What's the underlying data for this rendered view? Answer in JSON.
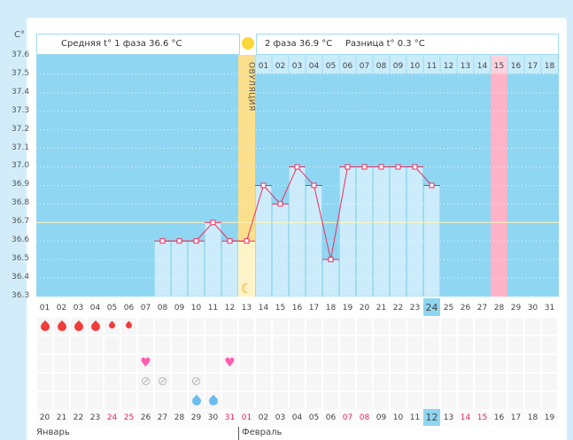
{
  "unit_label": "C°",
  "y_ticks": [
    "37.6",
    "37.5",
    "37.4",
    "37.3",
    "37.2",
    "37.1",
    "37.0",
    "36.9",
    "36.8",
    "36.7",
    "36.6",
    "36.5",
    "36.4",
    "36.3"
  ],
  "header": {
    "phase1": "Средняя t° 1 фаза 36.6 °C",
    "phase2": "2 фаза 36.9 °C",
    "diff": "Разница t° 0.3 °C"
  },
  "ovulation_label": "ОВУЛЯЦИЯ",
  "ovulation_day": 13,
  "expected_period_day": 28,
  "today_day": 24,
  "coverline": 36.7,
  "phase2_numbers": [
    "01",
    "02",
    "03",
    "04",
    "05",
    "06",
    "07",
    "08",
    "09",
    "10",
    "11",
    "12",
    "13",
    "14",
    "15",
    "16",
    "17",
    "18"
  ],
  "days": [
    "01",
    "02",
    "03",
    "04",
    "05",
    "06",
    "07",
    "08",
    "09",
    "10",
    "11",
    "12",
    "13",
    "14",
    "15",
    "16",
    "17",
    "18",
    "19",
    "20",
    "21",
    "22",
    "23",
    "24",
    "25",
    "26",
    "27",
    "28",
    "29",
    "30",
    "31"
  ],
  "chart_data": {
    "type": "line",
    "x": [
      8,
      9,
      10,
      11,
      12,
      13,
      14,
      15,
      16,
      17,
      18,
      19,
      20,
      21,
      22,
      23,
      24
    ],
    "y": [
      36.6,
      36.6,
      36.6,
      36.7,
      36.6,
      36.6,
      36.9,
      36.8,
      37.0,
      36.9,
      36.5,
      37.0,
      37.0,
      37.0,
      37.0,
      37.0,
      36.9
    ],
    "ylim": [
      36.3,
      37.6
    ],
    "ylabel": "C°"
  },
  "dates": [
    {
      "t": "20"
    },
    {
      "t": "21"
    },
    {
      "t": "22"
    },
    {
      "t": "23"
    },
    {
      "t": "24",
      "red": true
    },
    {
      "t": "25",
      "red": true
    },
    {
      "t": "26"
    },
    {
      "t": "27"
    },
    {
      "t": "28"
    },
    {
      "t": "29"
    },
    {
      "t": "30"
    },
    {
      "t": "31",
      "red": true
    },
    {
      "t": "01",
      "red": true
    },
    {
      "t": "02"
    },
    {
      "t": "03"
    },
    {
      "t": "04"
    },
    {
      "t": "05"
    },
    {
      "t": "06"
    },
    {
      "t": "07",
      "red": true
    },
    {
      "t": "08",
      "red": true
    },
    {
      "t": "09"
    },
    {
      "t": "10"
    },
    {
      "t": "11"
    },
    {
      "t": "12"
    },
    {
      "t": "13"
    },
    {
      "t": "14",
      "red": true
    },
    {
      "t": "15",
      "red": true
    },
    {
      "t": "16"
    },
    {
      "t": "17"
    },
    {
      "t": "18"
    },
    {
      "t": "19"
    }
  ],
  "months": {
    "jan": "Январь",
    "feb": "Февраль"
  },
  "icons": [
    {
      "row": 0,
      "days": [
        1,
        2,
        3,
        4
      ],
      "name": "blood-drop-big-icon",
      "glyph": "💧",
      "color": "#f03c3c"
    },
    {
      "row": 0,
      "days": [
        5,
        6
      ],
      "name": "blood-drop-small-icon",
      "glyph": "💧",
      "color": "#f03c3c"
    },
    {
      "row": 2,
      "days": [
        7,
        12
      ],
      "name": "heart-icon",
      "glyph": "♥",
      "color": "#ff5cb0"
    },
    {
      "row": 3,
      "days": [
        7,
        8,
        10
      ],
      "name": "pill-icon",
      "glyph": "⊘",
      "color": "#bbbbbb"
    },
    {
      "row": 4,
      "days": [
        10,
        11
      ],
      "name": "water-drop-icon",
      "glyph": "💧",
      "color": "#6cbcef"
    }
  ]
}
